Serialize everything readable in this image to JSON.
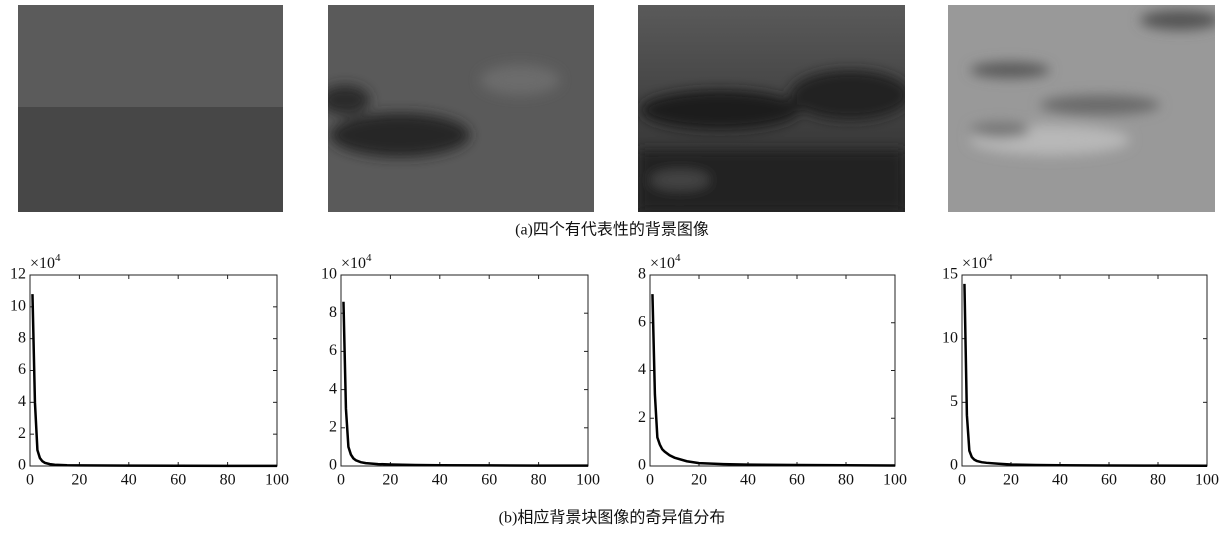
{
  "captions": {
    "a": "(a)四个有代表性的背景图像",
    "b": "(b)相应背景块图像的奇异值分布"
  },
  "chart_data": [
    {
      "type": "line",
      "y_multiplier": {
        "base": "×10",
        "exponent": "4"
      },
      "x": [
        1,
        2,
        3,
        4,
        5,
        6,
        8,
        10,
        15,
        20,
        30,
        40,
        60,
        80,
        100
      ],
      "values": [
        10.8,
        4,
        1,
        0.5,
        0.3,
        0.2,
        0.12,
        0.08,
        0.05,
        0.04,
        0.03,
        0.02,
        0.015,
        0.01,
        0.01
      ],
      "color": "#000000",
      "xlim": [
        0,
        100
      ],
      "xticks": [
        0,
        20,
        40,
        60,
        80,
        100
      ],
      "ylim": [
        0,
        12
      ],
      "yticks": [
        0,
        2,
        4,
        6,
        8,
        10,
        12
      ]
    },
    {
      "type": "line",
      "y_multiplier": {
        "base": "×10",
        "exponent": "4"
      },
      "x": [
        1,
        2,
        3,
        4,
        5,
        6,
        8,
        10,
        15,
        20,
        30,
        40,
        60,
        80,
        100
      ],
      "values": [
        8.6,
        3,
        1,
        0.6,
        0.4,
        0.3,
        0.2,
        0.15,
        0.1,
        0.08,
        0.05,
        0.04,
        0.03,
        0.02,
        0.02
      ],
      "color": "#000000",
      "xlim": [
        0,
        100
      ],
      "xticks": [
        0,
        20,
        40,
        60,
        80,
        100
      ],
      "ylim": [
        0,
        10
      ],
      "yticks": [
        0,
        2,
        4,
        6,
        8,
        10
      ]
    },
    {
      "type": "line",
      "y_multiplier": {
        "base": "×10",
        "exponent": "4"
      },
      "x": [
        1,
        2,
        3,
        4,
        5,
        6,
        8,
        10,
        15,
        20,
        30,
        40,
        60,
        80,
        100
      ],
      "values": [
        7.2,
        3,
        1.2,
        0.9,
        0.7,
        0.6,
        0.45,
        0.35,
        0.2,
        0.12,
        0.08,
        0.06,
        0.04,
        0.03,
        0.02
      ],
      "color": "#000000",
      "xlim": [
        0,
        100
      ],
      "xticks": [
        0,
        20,
        40,
        60,
        80,
        100
      ],
      "ylim": [
        0,
        8
      ],
      "yticks": [
        0,
        2,
        4,
        6,
        8
      ]
    },
    {
      "type": "line",
      "y_multiplier": {
        "base": "×10",
        "exponent": "4"
      },
      "x": [
        1,
        2,
        3,
        4,
        5,
        6,
        8,
        10,
        15,
        20,
        30,
        40,
        60,
        80,
        100
      ],
      "values": [
        14.3,
        4,
        1.2,
        0.7,
        0.5,
        0.4,
        0.3,
        0.25,
        0.18,
        0.12,
        0.08,
        0.06,
        0.04,
        0.03,
        0.02
      ],
      "color": "#000000",
      "xlim": [
        0,
        100
      ],
      "xticks": [
        0,
        20,
        40,
        60,
        80,
        100
      ],
      "ylim": [
        0,
        15
      ],
      "yticks": [
        0,
        5,
        10,
        15
      ]
    }
  ]
}
